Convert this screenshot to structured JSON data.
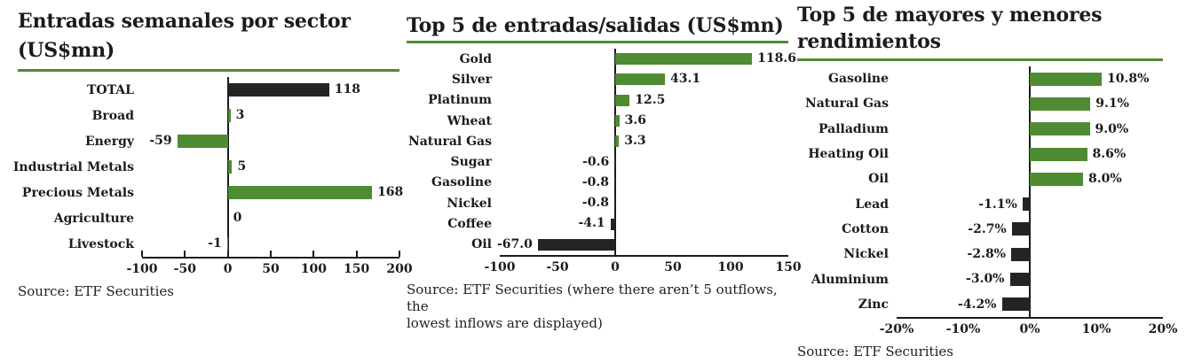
{
  "colors": {
    "green": "#4e8b33",
    "black": "#242424",
    "underline": "#4e8b33",
    "axis": "#1b1b1b"
  },
  "chart_data": [
    {
      "type": "bar",
      "orientation": "horizontal",
      "title": "Entradas semanales por sector (US$mn)",
      "title_lines": [
        "Entradas semanales por sector",
        "(US$mn)"
      ],
      "categories": [
        "TOTAL",
        "Broad",
        "Energy",
        "Industrial Metals",
        "Precious Metals",
        "Agriculture",
        "Livestock"
      ],
      "values": [
        118,
        3,
        -59,
        5,
        168,
        0,
        -1
      ],
      "value_labels": [
        "118",
        "3",
        "-59",
        "5",
        "168",
        "0",
        "-1"
      ],
      "bar_colors": [
        "black",
        "green",
        "green",
        "green",
        "green",
        "green",
        "green"
      ],
      "xlim": [
        -100,
        200
      ],
      "xticks": [
        -100,
        -50,
        0,
        50,
        100,
        150,
        200
      ],
      "xtick_labels": [
        "-100",
        "-50",
        "0",
        "50",
        "100",
        "150",
        "200"
      ],
      "legend": "none",
      "grid": "off",
      "source_lines": [
        "Source: ETF Securities",
        ""
      ]
    },
    {
      "type": "bar",
      "orientation": "horizontal",
      "title": "Top 5 de entradas/salidas (US$mn)",
      "title_lines": [
        "Top 5 de entradas/salidas (US$mn)",
        ""
      ],
      "categories": [
        "Gold",
        "Silver",
        "Platinum",
        "Wheat",
        "Natural Gas",
        "Sugar",
        "Gasoline",
        "Nickel",
        "Coffee",
        "Oil"
      ],
      "values": [
        118.6,
        43.1,
        12.5,
        3.6,
        3.3,
        -0.6,
        -0.8,
        -0.8,
        -4.1,
        -67.0
      ],
      "value_labels": [
        "118.6",
        "43.1",
        "12.5",
        "3.6",
        "3.3",
        "-0.6",
        "-0.8",
        "-0.8",
        "-4.1",
        "-67.0"
      ],
      "bar_colors": [
        "green",
        "green",
        "green",
        "green",
        "green",
        "black",
        "black",
        "black",
        "black",
        "black"
      ],
      "xlim": [
        -100,
        150
      ],
      "xticks": [
        -100,
        -50,
        0,
        50,
        100,
        150
      ],
      "xtick_labels": [
        "-100",
        "-50",
        "0",
        "50",
        "100",
        "150"
      ],
      "legend": "none",
      "grid": "off",
      "source_lines": [
        "Source: ETF Securities (where there aren’t 5 outflows, the",
        "lowest inflows are displayed)"
      ]
    },
    {
      "type": "bar",
      "orientation": "horizontal",
      "title": "Top 5 de mayores y menores rendimientos",
      "title_lines": [
        "Top 5 de mayores y menores",
        "rendimientos"
      ],
      "categories": [
        "Gasoline",
        "Natural Gas",
        "Palladium",
        "Heating Oil",
        "Oil",
        "Lead",
        "Cotton",
        "Nickel",
        "Aluminium",
        "Zinc"
      ],
      "values": [
        10.8,
        9.1,
        9.0,
        8.6,
        8.0,
        -1.1,
        -2.7,
        -2.8,
        -3.0,
        -4.2
      ],
      "value_labels": [
        "10.8%",
        "9.1%",
        "9.0%",
        "8.6%",
        "8.0%",
        "-1.1%",
        "-2.7%",
        "-2.8%",
        "-3.0%",
        "-4.2%"
      ],
      "bar_colors": [
        "green",
        "green",
        "green",
        "green",
        "green",
        "black",
        "black",
        "black",
        "black",
        "black"
      ],
      "xlim": [
        -20,
        20
      ],
      "xticks": [
        -20,
        -10,
        0,
        10,
        20
      ],
      "xtick_labels": [
        "-20%",
        "-10%",
        "0%",
        "10%",
        "20%"
      ],
      "legend": "none",
      "grid": "off",
      "source_lines": [
        "Source: ETF Securities",
        ""
      ]
    }
  ]
}
